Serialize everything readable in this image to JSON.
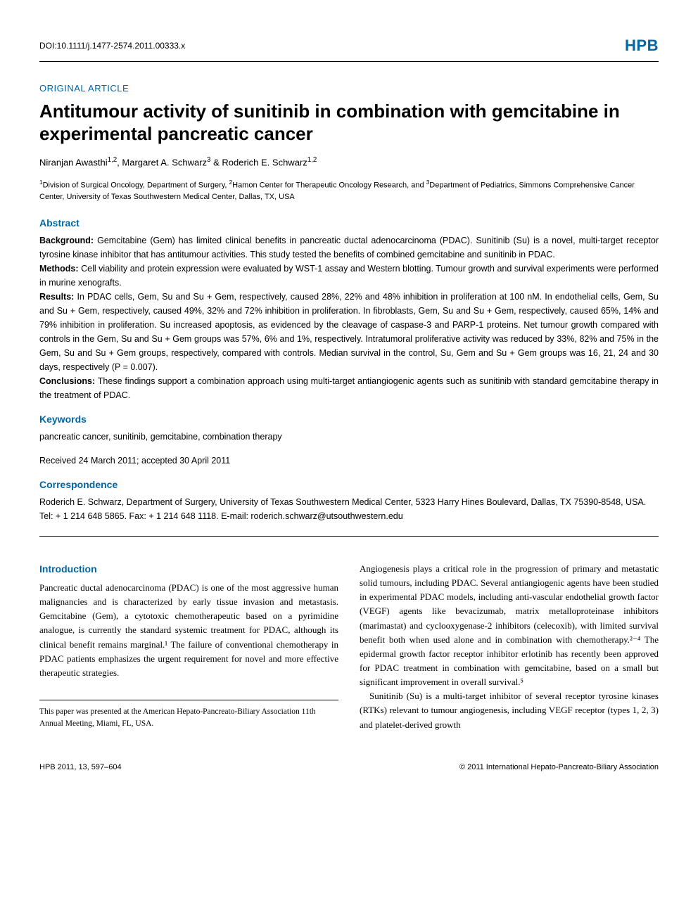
{
  "header": {
    "doi": "DOI:10.1111/j.1477-2574.2011.00333.x",
    "journal_logo": "HPB"
  },
  "article_type": "ORIGINAL ARTICLE",
  "title": "Antitumour activity of sunitinib in combination with gemcitabine in experimental pancreatic cancer",
  "authors_html": "Niranjan Awasthi<sup>1,2</sup>, Margaret A. Schwarz<sup>3</sup> & Roderich E. Schwarz<sup>1,2</sup>",
  "affiliations_html": "<sup>1</sup>Division of Surgical Oncology, Department of Surgery, <sup>2</sup>Hamon Center for Therapeutic Oncology Research, and <sup>3</sup>Department of Pediatrics, Simmons Comprehensive Cancer Center, University of Texas Southwestern Medical Center, Dallas, TX, USA",
  "abstract": {
    "heading": "Abstract",
    "sections": [
      {
        "label": "Background:",
        "text": " Gemcitabine (Gem) has limited clinical benefits in pancreatic ductal adenocarcinoma (PDAC). Sunitinib (Su) is a novel, multi-target receptor tyrosine kinase inhibitor that has antitumour activities. This study tested the benefits of combined gemcitabine and sunitinib in PDAC."
      },
      {
        "label": "Methods:",
        "text": " Cell viability and protein expression were evaluated by WST-1 assay and Western blotting. Tumour growth and survival experiments were performed in murine xenografts."
      },
      {
        "label": "Results:",
        "text": " In PDAC cells, Gem, Su and Su + Gem, respectively, caused 28%, 22% and 48% inhibition in proliferation at 100 nM. In endothelial cells, Gem, Su and Su + Gem, respectively, caused 49%, 32% and 72% inhibition in proliferation. In fibroblasts, Gem, Su and Su + Gem, respectively, caused 65%, 14% and 79% inhibition in proliferation. Su increased apoptosis, as evidenced by the cleavage of caspase-3 and PARP-1 proteins. Net tumour growth compared with controls in the Gem, Su and Su + Gem groups was 57%, 6% and 1%, respectively. Intratumoral proliferative activity was reduced by 33%, 82% and 75% in the Gem, Su and Su + Gem groups, respectively, compared with controls. Median survival in the control, Su, Gem and Su + Gem groups was 16, 21, 24 and 30 days, respectively (P = 0.007)."
      },
      {
        "label": "Conclusions:",
        "text": " These findings support a combination approach using multi-target antiangiogenic agents such as sunitinib with standard gemcitabine therapy in the treatment of PDAC."
      }
    ]
  },
  "keywords": {
    "heading": "Keywords",
    "text": "pancreatic cancer, sunitinib, gemcitabine, combination therapy"
  },
  "received": "Received 24 March 2011; accepted 30 April 2011",
  "correspondence": {
    "heading": "Correspondence",
    "text": "Roderich E. Schwarz, Department of Surgery, University of Texas Southwestern Medical Center, 5323 Harry Hines Boulevard, Dallas, TX 75390-8548, USA. Tel: + 1 214 648 5865. Fax: + 1 214 648 1118. E-mail: roderich.schwarz@utsouthwestern.edu"
  },
  "intro": {
    "heading": "Introduction",
    "col1_paras": [
      "Pancreatic ductal adenocarcinoma (PDAC) is one of the most aggressive human malignancies and is characterized by early tissue invasion and metastasis. Gemcitabine (Gem), a cytotoxic chemotherapeutic based on a pyrimidine analogue, is currently the standard systemic treatment for PDAC, although its clinical benefit remains marginal.¹ The failure of conventional chemotherapy in PDAC patients emphasizes the urgent requirement for novel and more effective therapeutic strategies."
    ],
    "col2_paras": [
      "Angiogenesis plays a critical role in the progression of primary and metastatic solid tumours, including PDAC. Several antiangiogenic agents have been studied in experimental PDAC models, including anti-vascular endothelial growth factor (VEGF) agents like bevacizumab, matrix metalloproteinase inhibitors (marimastat) and cyclooxygenase-2 inhibitors (celecoxib), with limited survival benefit both when used alone and in combination with chemotherapy.²⁻⁴ The epidermal growth factor receptor inhibitor erlotinib has recently been approved for PDAC treatment in combination with gemcitabine, based on a small but significant improvement in overall survival.⁵",
      "Sunitinib (Su) is a multi-target inhibitor of several receptor tyrosine kinases (RTKs) relevant to tumour angiogenesis, including VEGF receptor (types 1, 2, 3) and platelet-derived growth"
    ]
  },
  "footnote": "This paper was presented at the American Hepato-Pancreato-Biliary Association 11th Annual Meeting, Miami, FL, USA.",
  "footer": {
    "left": "HPB 2011, 13, 597–604",
    "right": "© 2011 International Hepato-Pancreato-Biliary Association"
  },
  "colors": {
    "accent": "#0066a4",
    "text": "#000000",
    "bg": "#ffffff"
  },
  "typography": {
    "title_fontsize": 26,
    "body_fontsize": 13,
    "abstract_fontsize": 12.5,
    "heading_fontsize": 14,
    "affiliation_fontsize": 11
  }
}
